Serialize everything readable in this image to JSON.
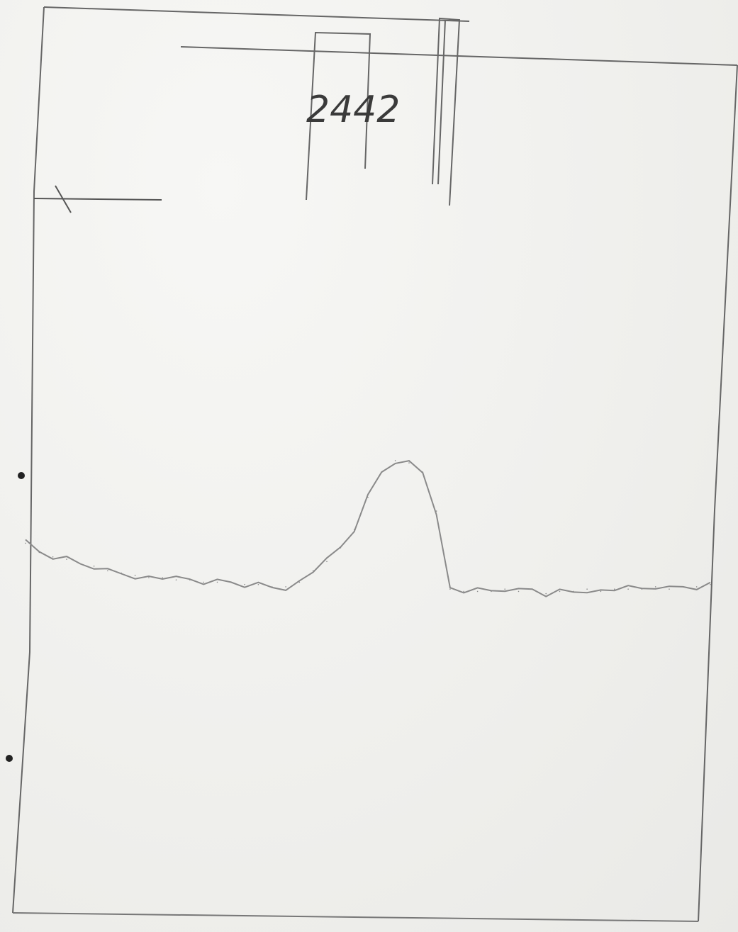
{
  "chart_data": {
    "type": "line",
    "title": "",
    "xlabel": "",
    "ylabel": "",
    "annotation": "2442",
    "line_color": "#8a8a8a",
    "frame_color": "#5a5a5a",
    "grid": false,
    "x": [
      0,
      2,
      4,
      6,
      8,
      10,
      12,
      14,
      16,
      18,
      20,
      22,
      24,
      26,
      28,
      30,
      32,
      34,
      36,
      38,
      40,
      42,
      44,
      46,
      48,
      50,
      52,
      54,
      56,
      58,
      60,
      62,
      64,
      66,
      68,
      70,
      72,
      74,
      76,
      78,
      80,
      82,
      84,
      86,
      88,
      90,
      92,
      94,
      96,
      98,
      100
    ],
    "values": [
      32,
      28,
      26,
      25,
      23,
      22,
      20,
      19,
      18,
      17,
      17,
      16,
      16,
      15,
      15,
      15,
      14,
      14,
      13,
      13,
      15,
      20,
      24,
      30,
      38,
      52,
      63,
      68,
      67,
      63,
      46,
      12,
      11,
      11,
      11,
      12,
      11,
      12,
      10,
      11,
      11,
      12,
      11,
      12,
      12,
      12,
      13,
      12,
      13,
      13,
      14
    ],
    "xlim": [
      0,
      100
    ],
    "ylim": [
      0,
      100
    ]
  }
}
